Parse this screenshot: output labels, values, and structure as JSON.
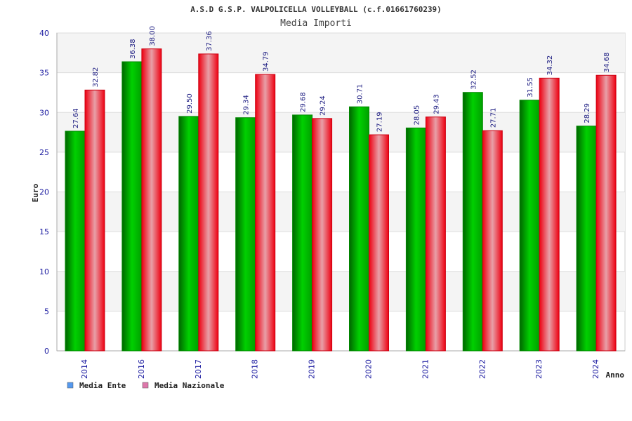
{
  "chart_data": {
    "type": "bar",
    "title": "A.S.D G.S.P. VALPOLICELLA VOLLEYBALL (c.f.01661760239)",
    "subtitle": "Media Importi",
    "xlabel": "Anno",
    "ylabel": "Euro",
    "ylim": [
      0,
      40
    ],
    "yticks": [
      0,
      5,
      10,
      15,
      20,
      25,
      30,
      35,
      40
    ],
    "categories": [
      "2014",
      "2016",
      "2017",
      "2018",
      "2019",
      "2020",
      "2021",
      "2022",
      "2023",
      "2024"
    ],
    "series": [
      {
        "name": "Media Ente",
        "values": [
          27.64,
          36.38,
          29.5,
          29.34,
          29.68,
          30.71,
          28.05,
          32.52,
          31.55,
          28.29
        ],
        "labels": [
          "27.64",
          "36.38",
          "29.50",
          "29.34",
          "29.68",
          "30.71",
          "28.05",
          "32.52",
          "31.55",
          "28.29"
        ],
        "color": "#00bb00",
        "legend_color": "#5599ee"
      },
      {
        "name": "Media Nazionale",
        "values": [
          32.82,
          38.0,
          37.36,
          34.79,
          29.24,
          27.19,
          29.43,
          27.71,
          34.32,
          34.68
        ],
        "labels": [
          "32.82",
          "38.00",
          "37.36",
          "34.79",
          "29.24",
          "27.19",
          "29.43",
          "27.71",
          "34.32",
          "34.68"
        ],
        "color": "#ee1122",
        "legend_color": "#dd77aa"
      }
    ],
    "grid": true,
    "legend": "bottom-left"
  }
}
